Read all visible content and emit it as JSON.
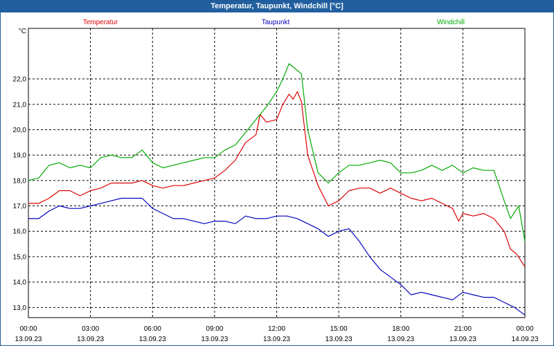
{
  "window": {
    "title": "Temperatur, Taupunkt, Windchill [°C]"
  },
  "chart_data": {
    "type": "line",
    "title": "Temperatur, Taupunkt, Windchill [°C]",
    "ylabel": "°C",
    "xlabel": "",
    "xlim": [
      0,
      24
    ],
    "ylim": [
      12.6,
      23.8
    ],
    "grid": true,
    "legend_placement": "top",
    "y_ticks": [
      13.0,
      14.0,
      15.0,
      16.0,
      17.0,
      18.0,
      19.0,
      20.0,
      21.0,
      22.0
    ],
    "y_tick_labels": [
      "13,0",
      "14,0",
      "15,0",
      "16,0",
      "17,0",
      "18,0",
      "19,0",
      "20,0",
      "21,0",
      "22,0"
    ],
    "x_ticks": [
      0,
      3,
      6,
      9,
      12,
      15,
      18,
      21,
      24
    ],
    "x_tick_labels": [
      {
        "time": "00:00",
        "date": "13.09.23"
      },
      {
        "time": "03:00",
        "date": "13.09.23"
      },
      {
        "time": "06:00",
        "date": "13.09.23"
      },
      {
        "time": "09:00",
        "date": "13.09.23"
      },
      {
        "time": "12:00",
        "date": "13.09.23"
      },
      {
        "time": "15:00",
        "date": "13.09.23"
      },
      {
        "time": "18:00",
        "date": "13.09.23"
      },
      {
        "time": "21:00",
        "date": "13.09.23"
      },
      {
        "time": "00:00",
        "date": "14.09.23"
      }
    ],
    "series": [
      {
        "name": "Temperatur",
        "color": "#dd0000",
        "points": [
          [
            0,
            17.1
          ],
          [
            0.5,
            17.1
          ],
          [
            1,
            17.3
          ],
          [
            1.5,
            17.6
          ],
          [
            2,
            17.6
          ],
          [
            2.5,
            17.4
          ],
          [
            3,
            17.6
          ],
          [
            3.5,
            17.7
          ],
          [
            4,
            17.9
          ],
          [
            4.5,
            17.9
          ],
          [
            5,
            17.9
          ],
          [
            5.5,
            18.0
          ],
          [
            6,
            17.8
          ],
          [
            6.5,
            17.7
          ],
          [
            7,
            17.8
          ],
          [
            7.5,
            17.8
          ],
          [
            8,
            17.9
          ],
          [
            8.5,
            18.0
          ],
          [
            9,
            18.1
          ],
          [
            9.5,
            18.4
          ],
          [
            10,
            18.8
          ],
          [
            10.5,
            19.5
          ],
          [
            11,
            19.8
          ],
          [
            11.2,
            20.6
          ],
          [
            11.5,
            20.3
          ],
          [
            12,
            20.4
          ],
          [
            12.3,
            21.0
          ],
          [
            12.6,
            21.4
          ],
          [
            12.8,
            21.2
          ],
          [
            13,
            21.5
          ],
          [
            13.2,
            21.1
          ],
          [
            13.5,
            19.0
          ],
          [
            14,
            17.8
          ],
          [
            14.5,
            17.0
          ],
          [
            15,
            17.2
          ],
          [
            15.5,
            17.6
          ],
          [
            16,
            17.7
          ],
          [
            16.5,
            17.7
          ],
          [
            17,
            17.5
          ],
          [
            17.5,
            17.7
          ],
          [
            18,
            17.5
          ],
          [
            18.5,
            17.3
          ],
          [
            19,
            17.2
          ],
          [
            19.5,
            17.3
          ],
          [
            20,
            17.1
          ],
          [
            20.5,
            16.9
          ],
          [
            20.8,
            16.4
          ],
          [
            21,
            16.7
          ],
          [
            21.5,
            16.6
          ],
          [
            22,
            16.7
          ],
          [
            22.5,
            16.5
          ],
          [
            23,
            16.0
          ],
          [
            23.3,
            15.3
          ],
          [
            23.6,
            15.1
          ],
          [
            24,
            14.6
          ]
        ]
      },
      {
        "name": "Taupunkt",
        "color": "#0000bb",
        "points": [
          [
            0,
            16.5
          ],
          [
            0.5,
            16.5
          ],
          [
            1,
            16.8
          ],
          [
            1.5,
            17.0
          ],
          [
            2,
            16.9
          ],
          [
            2.5,
            16.9
          ],
          [
            3,
            17.0
          ],
          [
            3.5,
            17.1
          ],
          [
            4,
            17.2
          ],
          [
            4.5,
            17.3
          ],
          [
            5,
            17.3
          ],
          [
            5.5,
            17.3
          ],
          [
            6,
            16.9
          ],
          [
            6.5,
            16.7
          ],
          [
            7,
            16.5
          ],
          [
            7.5,
            16.5
          ],
          [
            8,
            16.4
          ],
          [
            8.5,
            16.3
          ],
          [
            9,
            16.4
          ],
          [
            9.5,
            16.4
          ],
          [
            10,
            16.3
          ],
          [
            10.5,
            16.6
          ],
          [
            11,
            16.5
          ],
          [
            11.5,
            16.5
          ],
          [
            12,
            16.6
          ],
          [
            12.5,
            16.6
          ],
          [
            13,
            16.5
          ],
          [
            13.5,
            16.3
          ],
          [
            14,
            16.1
          ],
          [
            14.5,
            15.8
          ],
          [
            15,
            16.0
          ],
          [
            15.5,
            16.1
          ],
          [
            16,
            15.6
          ],
          [
            16.5,
            15.0
          ],
          [
            17,
            14.5
          ],
          [
            17.5,
            14.2
          ],
          [
            18,
            13.9
          ],
          [
            18.5,
            13.5
          ],
          [
            19,
            13.6
          ],
          [
            19.5,
            13.5
          ],
          [
            20,
            13.4
          ],
          [
            20.5,
            13.3
          ],
          [
            21,
            13.6
          ],
          [
            21.5,
            13.5
          ],
          [
            22,
            13.4
          ],
          [
            22.5,
            13.4
          ],
          [
            23,
            13.2
          ],
          [
            23.5,
            13.0
          ],
          [
            24,
            12.7
          ]
        ]
      },
      {
        "name": "Windchill",
        "color": "#00aa00",
        "points": [
          [
            0,
            18.0
          ],
          [
            0.5,
            18.1
          ],
          [
            1,
            18.6
          ],
          [
            1.5,
            18.7
          ],
          [
            2,
            18.5
          ],
          [
            2.5,
            18.6
          ],
          [
            3,
            18.5
          ],
          [
            3.5,
            18.9
          ],
          [
            4,
            19.0
          ],
          [
            4.5,
            18.9
          ],
          [
            5,
            18.9
          ],
          [
            5.5,
            19.2
          ],
          [
            6,
            18.7
          ],
          [
            6.5,
            18.5
          ],
          [
            7,
            18.6
          ],
          [
            7.5,
            18.7
          ],
          [
            8,
            18.8
          ],
          [
            8.5,
            18.9
          ],
          [
            9,
            18.9
          ],
          [
            9.5,
            19.2
          ],
          [
            10,
            19.4
          ],
          [
            10.5,
            19.9
          ],
          [
            11,
            20.4
          ],
          [
            11.5,
            20.9
          ],
          [
            12,
            21.5
          ],
          [
            12.3,
            22.0
          ],
          [
            12.6,
            22.6
          ],
          [
            12.9,
            22.4
          ],
          [
            13.2,
            22.2
          ],
          [
            13.5,
            20.0
          ],
          [
            14,
            18.3
          ],
          [
            14.5,
            17.9
          ],
          [
            15,
            18.3
          ],
          [
            15.5,
            18.6
          ],
          [
            16,
            18.6
          ],
          [
            16.5,
            18.7
          ],
          [
            17,
            18.8
          ],
          [
            17.5,
            18.7
          ],
          [
            18,
            18.3
          ],
          [
            18.5,
            18.3
          ],
          [
            19,
            18.4
          ],
          [
            19.5,
            18.6
          ],
          [
            20,
            18.4
          ],
          [
            20.5,
            18.6
          ],
          [
            21,
            18.3
          ],
          [
            21.5,
            18.5
          ],
          [
            22,
            18.4
          ],
          [
            22.5,
            18.4
          ],
          [
            23,
            17.2
          ],
          [
            23.3,
            16.5
          ],
          [
            23.7,
            17.0
          ],
          [
            24,
            15.6
          ]
        ]
      }
    ]
  }
}
